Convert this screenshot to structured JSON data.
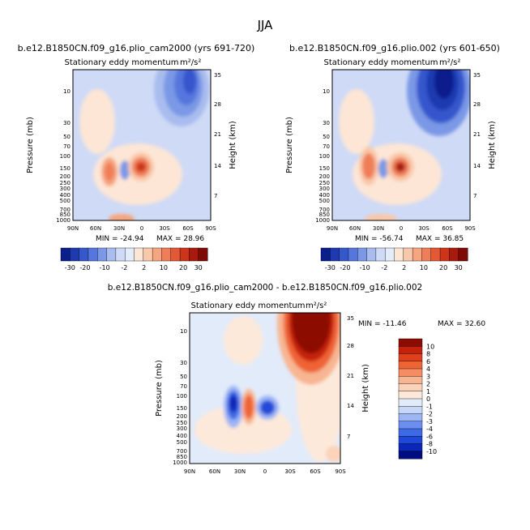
{
  "colors": {
    "plot1_scale": [
      "#0a1f8c",
      "#1f3ab0",
      "#3457cc",
      "#5577dd",
      "#7a98e6",
      "#a8bcee",
      "#cfdaf6",
      "#e4ecfa",
      "#fde6d6",
      "#f9c7a9",
      "#f5a57f",
      "#ef7e58",
      "#e35835",
      "#cc3519",
      "#aa1a0c",
      "#7d0a05"
    ],
    "plot3_scale": [
      "#000c80",
      "#0a28b8",
      "#2048d8",
      "#3f6ae6",
      "#6b8ef0",
      "#9cb5f5",
      "#c6d7f7",
      "#e2ebfa",
      "#fde9da",
      "#fbd3b8",
      "#f8b592",
      "#f58c62",
      "#ef6434",
      "#e0411b",
      "#c4220c",
      "#8c0b02"
    ]
  },
  "chart_data": [
    {
      "type": "heatmap",
      "super_title": "JJA",
      "title": "b.e12.B1850CN.f09_g16.plio_cam2000 (yrs 691-720)",
      "subtitle": "Stationary eddy momentum",
      "units_label": "m²/s²",
      "xlabel": "",
      "ylabel": "Pressure (mb)",
      "ylabel_right": "Height (km)",
      "x_ticks": [
        "90N",
        "60N",
        "30N",
        "0",
        "30S",
        "60S",
        "90S"
      ],
      "y_ticks": [
        "10",
        "30",
        "50",
        "70",
        "100",
        "150",
        "200",
        "250",
        "300",
        "400",
        "500",
        "700",
        "850",
        "1000"
      ],
      "y_ticks_right": [
        "35",
        "28",
        "21",
        "14",
        "7"
      ],
      "min_label": "MIN = -24.94",
      "max_label": "MAX = 28.96",
      "colorbar_ticks": [
        "-30",
        "-20",
        "-10",
        "-2",
        "2",
        "10",
        "20",
        "30"
      ]
    },
    {
      "type": "heatmap",
      "title": "b.e12.B1850CN.f09_g16.plio.002 (yrs 601-650)",
      "subtitle": "Stationary eddy momentum",
      "units_label": "m²/s²",
      "ylabel": "Pressure (mb)",
      "ylabel_right": "Height (km)",
      "x_ticks": [
        "90N",
        "60N",
        "30N",
        "0",
        "30S",
        "60S",
        "90S"
      ],
      "y_ticks": [
        "10",
        "30",
        "50",
        "70",
        "100",
        "150",
        "200",
        "250",
        "300",
        "400",
        "500",
        "700",
        "850",
        "1000"
      ],
      "y_ticks_right": [
        "35",
        "28",
        "21",
        "14",
        "7"
      ],
      "min_label": "MIN = -56.74",
      "max_label": "MAX = 36.85",
      "colorbar_ticks": [
        "-30",
        "-20",
        "-10",
        "-2",
        "2",
        "10",
        "20",
        "30"
      ]
    },
    {
      "type": "heatmap",
      "title": "b.e12.B1850CN.f09_g16.plio_cam2000 - b.e12.B1850CN.f09_g16.plio.002",
      "subtitle": "Stationary eddy momentum",
      "units_label": "m²/s²",
      "ylabel": "Pressure (mb)",
      "ylabel_right": "Height (km)",
      "x_ticks": [
        "90N",
        "60N",
        "30N",
        "0",
        "30S",
        "60S",
        "90S"
      ],
      "y_ticks": [
        "10",
        "30",
        "50",
        "70",
        "100",
        "150",
        "200",
        "250",
        "300",
        "400",
        "500",
        "700",
        "850",
        "1000"
      ],
      "y_ticks_right": [
        "35",
        "28",
        "21",
        "14",
        "7"
      ],
      "min_label": "MIN = -11.46",
      "max_label": "MAX = 32.60",
      "colorbar_ticks": [
        "10",
        "8",
        "6",
        "4",
        "3",
        "2",
        "1",
        "0",
        "-1",
        "-2",
        "-3",
        "-4",
        "-6",
        "-8",
        "-10"
      ]
    }
  ]
}
